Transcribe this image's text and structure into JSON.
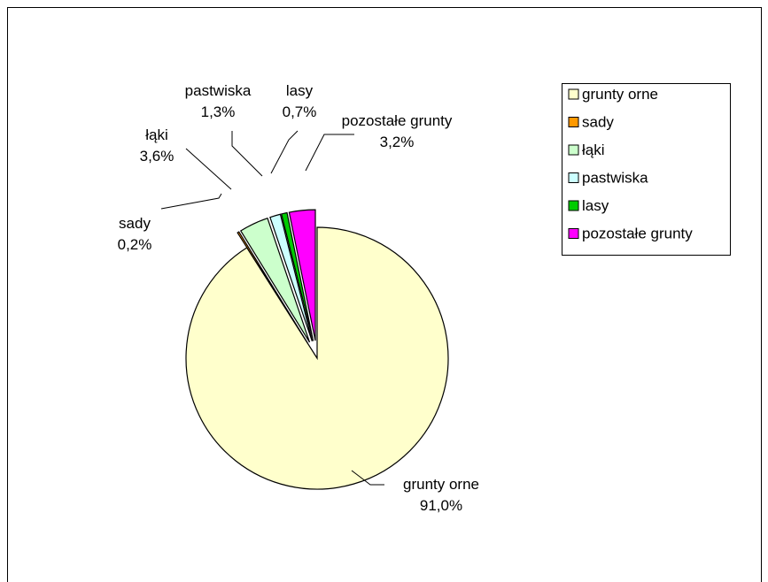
{
  "chart_data": {
    "type": "pie",
    "title": "",
    "exploded": true,
    "slices": [
      {
        "name": "grunty orne",
        "value": 91.0,
        "label": "91,0%",
        "color": "#ffffcc"
      },
      {
        "name": "sady",
        "value": 0.2,
        "label": "0,2%",
        "color": "#ff9900"
      },
      {
        "name": "łąki",
        "value": 3.6,
        "label": "3,6%",
        "color": "#ccffcc"
      },
      {
        "name": "pastwiska",
        "value": 1.3,
        "label": "1,3%",
        "color": "#ccffff"
      },
      {
        "name": "lasy",
        "value": 0.7,
        "label": "0,7%",
        "color": "#00cc00"
      },
      {
        "name": "pozostałe grunty",
        "value": 3.2,
        "label": "3,2%",
        "color": "#ff00ff"
      }
    ],
    "legend": {
      "position": "right",
      "entries": [
        "grunty orne",
        "sady",
        "łąki",
        "pastwiska",
        "lasy",
        "pozostałe grunty"
      ]
    }
  }
}
